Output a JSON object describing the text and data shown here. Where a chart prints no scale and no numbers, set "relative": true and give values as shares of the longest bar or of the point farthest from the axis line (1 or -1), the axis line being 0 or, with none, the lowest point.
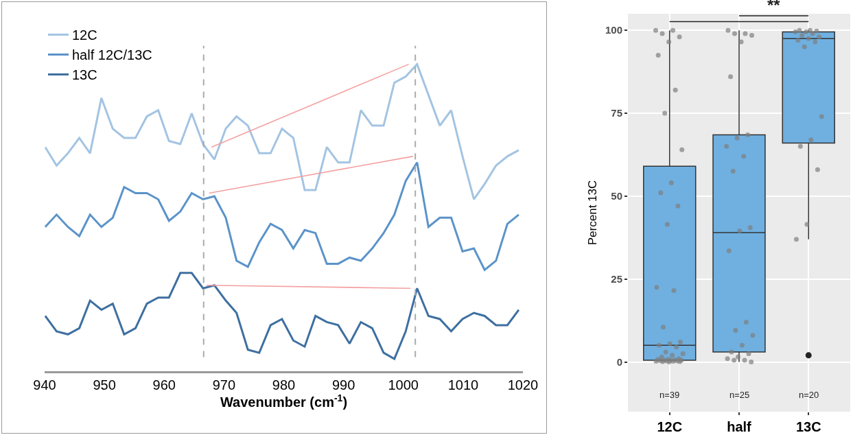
{
  "chart_data": [
    {
      "type": "line",
      "relative": true,
      "xlabel": "Wavenumber (cm$^{-1}$)",
      "xlim": [
        940,
        1020
      ],
      "xticks": [
        940,
        950,
        960,
        970,
        980,
        990,
        1000,
        1010,
        1020
      ],
      "legend": "top left",
      "x": [
        940.1,
        942.0,
        943.9,
        945.8,
        947.6,
        949.5,
        951.4,
        953.3,
        955.2,
        957.1,
        959.0,
        960.8,
        962.7,
        964.6,
        966.5,
        968.4,
        970.3,
        972.1,
        974.0,
        975.9,
        977.8,
        979.7,
        981.6,
        983.5,
        985.3,
        987.2,
        989.1,
        991.0,
        992.9,
        994.8,
        996.7,
        998.5,
        1000.4,
        1002.3,
        1004.2,
        1006.1,
        1008.0,
        1009.9,
        1011.8,
        1013.6,
        1015.5,
        1017.4,
        1019.3
      ],
      "series": [
        {
          "name": "12C",
          "color": "#a3c4e2",
          "values": [
            0.73,
            0.67,
            0.71,
            0.76,
            0.71,
            0.89,
            0.79,
            0.76,
            0.76,
            0.83,
            0.85,
            0.75,
            0.74,
            0.84,
            0.74,
            0.69,
            0.79,
            0.83,
            0.8,
            0.71,
            0.71,
            0.79,
            0.76,
            0.59,
            0.59,
            0.73,
            0.68,
            0.68,
            0.85,
            0.8,
            0.8,
            0.94,
            0.96,
            1.0,
            0.9,
            0.8,
            0.85,
            0.7,
            0.56,
            0.61,
            0.67,
            0.7,
            0.72
          ]
        },
        {
          "name": "half 12C/13C",
          "color": "#5b93c9",
          "values": [
            0.47,
            0.51,
            0.47,
            0.44,
            0.51,
            0.47,
            0.5,
            0.6,
            0.58,
            0.58,
            0.56,
            0.49,
            0.52,
            0.58,
            0.56,
            0.57,
            0.5,
            0.36,
            0.34,
            0.42,
            0.48,
            0.46,
            0.4,
            0.46,
            0.45,
            0.35,
            0.35,
            0.37,
            0.36,
            0.4,
            0.45,
            0.51,
            0.62,
            0.68,
            0.47,
            0.5,
            0.5,
            0.39,
            0.4,
            0.33,
            0.36,
            0.48,
            0.51
          ]
        },
        {
          "name": "13C",
          "color": "#3e6fa0",
          "values": [
            0.18,
            0.13,
            0.12,
            0.14,
            0.23,
            0.2,
            0.22,
            0.12,
            0.14,
            0.22,
            0.24,
            0.24,
            0.32,
            0.32,
            0.27,
            0.28,
            0.23,
            0.19,
            0.07,
            0.06,
            0.15,
            0.17,
            0.1,
            0.08,
            0.18,
            0.16,
            0.15,
            0.09,
            0.16,
            0.14,
            0.06,
            0.04,
            0.13,
            0.27,
            0.18,
            0.17,
            0.13,
            0.17,
            0.19,
            0.18,
            0.15,
            0.15,
            0.2
          ]
        },
        {
          "type": "line",
          "color": "#f4a0a0",
          "x": [
            967.9,
            1000.9
          ],
          "values": [
            0.73,
            1.0
          ]
        },
        {
          "type": "line",
          "color": "#f4a0a0",
          "x": [
            967.5,
            1001.6
          ],
          "values": [
            0.58,
            0.7
          ]
        },
        {
          "type": "line",
          "color": "#f4a0a0",
          "x": [
            967.1,
            1001.2
          ],
          "values": [
            0.28,
            0.27
          ]
        }
      ],
      "ref_lines": [
        {
          "axis": "x",
          "value": 966.6,
          "color": "#aaaaaa",
          "line_style": "dashed"
        },
        {
          "axis": "x",
          "value": 1002,
          "color": "#aaaaaa",
          "line_style": "dashed"
        }
      ]
    },
    {
      "type": "box",
      "ylabel": "Percent 13C",
      "categories": [
        "12C",
        "half",
        "13C"
      ],
      "ylim": [
        -15,
        105
      ],
      "yticks": [
        0,
        25,
        50,
        75,
        100
      ],
      "grid": true,
      "color": "#6fb0e0",
      "boxes": [
        {
          "low": 0.5,
          "q1": 0.5,
          "median": 5,
          "q3": 59,
          "high": 100
        },
        {
          "low": 0,
          "q1": 3,
          "median": 39,
          "q3": 68.5,
          "high": 100
        },
        {
          "low": 37,
          "q1": 66,
          "median": 97.5,
          "q3": 99.5,
          "high": 100,
          "outliers": [
            2
          ]
        }
      ],
      "series": [
        {
          "type": "scatter",
          "color": "#7f7f7f",
          "x": [
            "12C",
            "12C",
            "12C",
            "12C",
            "12C",
            "12C",
            "12C",
            "12C",
            "12C",
            "12C",
            "12C",
            "12C",
            "12C",
            "12C",
            "12C",
            "12C",
            "12C",
            "12C",
            "12C",
            "12C",
            "12C",
            "12C",
            "12C",
            "12C",
            "12C",
            "12C",
            "12C",
            "12C",
            "12C",
            "12C",
            "12C",
            "12C",
            "12C",
            "12C",
            "12C",
            "12C",
            "12C",
            "12C",
            "12C",
            "half",
            "half",
            "half",
            "half",
            "half",
            "half",
            "half",
            "half",
            "half",
            "half",
            "half",
            "half",
            "half",
            "half",
            "half",
            "half",
            "half",
            "half",
            "half",
            "half",
            "half",
            "half",
            "half",
            "half",
            "half",
            "13C",
            "13C",
            "13C",
            "13C",
            "13C",
            "13C",
            "13C",
            "13C",
            "13C",
            "13C",
            "13C",
            "13C",
            "13C",
            "13C",
            "13C",
            "13C",
            "13C",
            "13C"
          ],
          "values": [
            100,
            100,
            99,
            98,
            96.5,
            92.5,
            82,
            75,
            64,
            54,
            51,
            47,
            41.5,
            22.5,
            21.5,
            10.5,
            6,
            5.5,
            5,
            4.5,
            3,
            2.5,
            2,
            1.5,
            1,
            0.8,
            0.7,
            0.6,
            0.5,
            0.5,
            0.5,
            0.4,
            0.3,
            0.3,
            0.2,
            0.2,
            0.1,
            0.1,
            0,
            100,
            99,
            99,
            98.5,
            96.5,
            86,
            68.5,
            67.5,
            65,
            62,
            57.5,
            40.5,
            39.5,
            33.5,
            12,
            9.5,
            8,
            5,
            3,
            2.5,
            1.5,
            1,
            0.5,
            0.5,
            0,
            100,
            100,
            99.8,
            99.5,
            99.5,
            99,
            98.5,
            98,
            97.5,
            97,
            96.5,
            95,
            74,
            67,
            65,
            58,
            41.5,
            37
          ]
        }
      ],
      "annotations": [
        "**",
        "n=39",
        "n=25",
        "n=20"
      ]
    }
  ]
}
